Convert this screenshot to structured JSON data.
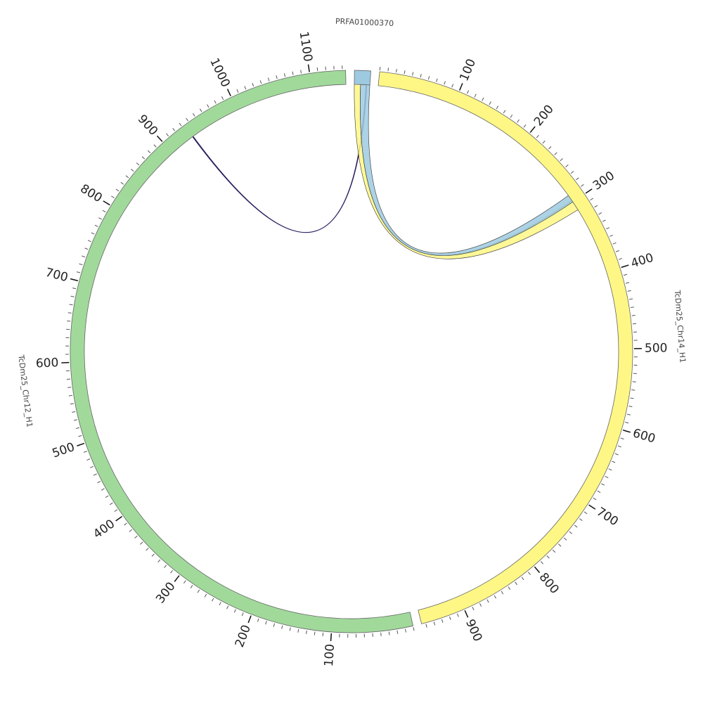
{
  "chart_data": {
    "type": "chord",
    "segments": [
      {
        "name": "PRFA01000370",
        "color": "#9ecae1",
        "length": 20,
        "ticks": []
      },
      {
        "name": "TcDm25_Chr14_H1",
        "color": "#fff785",
        "length": 955,
        "ticks": [
          100,
          200,
          300,
          400,
          500,
          600,
          700,
          800,
          900
        ]
      },
      {
        "name": "TcDm25_Chr12_H1",
        "color": "#a1d99b",
        "length": 1144,
        "ticks": [
          100,
          200,
          300,
          400,
          500,
          600,
          700,
          800,
          900,
          1000,
          1100
        ]
      }
    ],
    "minor_tick_step": 10,
    "links": [
      {
        "color": "#2b1b5e",
        "source": {
          "segment": 2,
          "start": 933,
          "end": 934
        },
        "target": {
          "segment": 0,
          "start": 15,
          "end": 16
        }
      },
      {
        "color": "#fff785",
        "source": {
          "segment": 0,
          "start": 0,
          "end": 8
        },
        "target": {
          "segment": 1,
          "start": 298,
          "end": 312
        }
      },
      {
        "color": "#9ecae1",
        "source": {
          "segment": 0,
          "start": 8,
          "end": 20
        },
        "target": {
          "segment": 1,
          "start": 290,
          "end": 300
        }
      }
    ]
  }
}
